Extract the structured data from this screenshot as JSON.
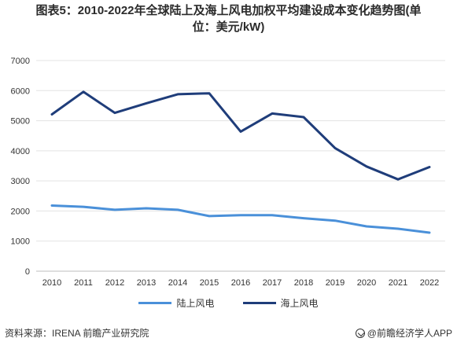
{
  "header": {
    "title_line1": "图表5：2010-2022年全球陆上及海上风电加权平均建设成本变化趋势图(单",
    "title_line2": "位：美元/kW)"
  },
  "chart_data": {
    "type": "line",
    "x": [
      "2010",
      "2011",
      "2012",
      "2013",
      "2014",
      "2015",
      "2016",
      "2017",
      "2018",
      "2019",
      "2020",
      "2021",
      "2022"
    ],
    "ylim": [
      0,
      7000
    ],
    "yticks": [
      0,
      1000,
      2000,
      3000,
      4000,
      5000,
      6000,
      7000
    ],
    "grid": true,
    "legend_position": "bottom",
    "series": [
      {
        "name": "陆上风电",
        "color": "#4a90d9",
        "values": [
          2180,
          2140,
          2040,
          2090,
          2040,
          1830,
          1860,
          1860,
          1760,
          1680,
          1490,
          1410,
          1280
        ]
      },
      {
        "name": "海上风电",
        "color": "#1f3d7a",
        "values": [
          5210,
          5960,
          5260,
          5580,
          5880,
          5910,
          4640,
          5240,
          5120,
          4090,
          3480,
          3050,
          3460
        ]
      }
    ]
  },
  "footer": {
    "source": "资料来源：IRENA 前瞻产业研究院",
    "brand": "@前瞻经济学人APP"
  }
}
